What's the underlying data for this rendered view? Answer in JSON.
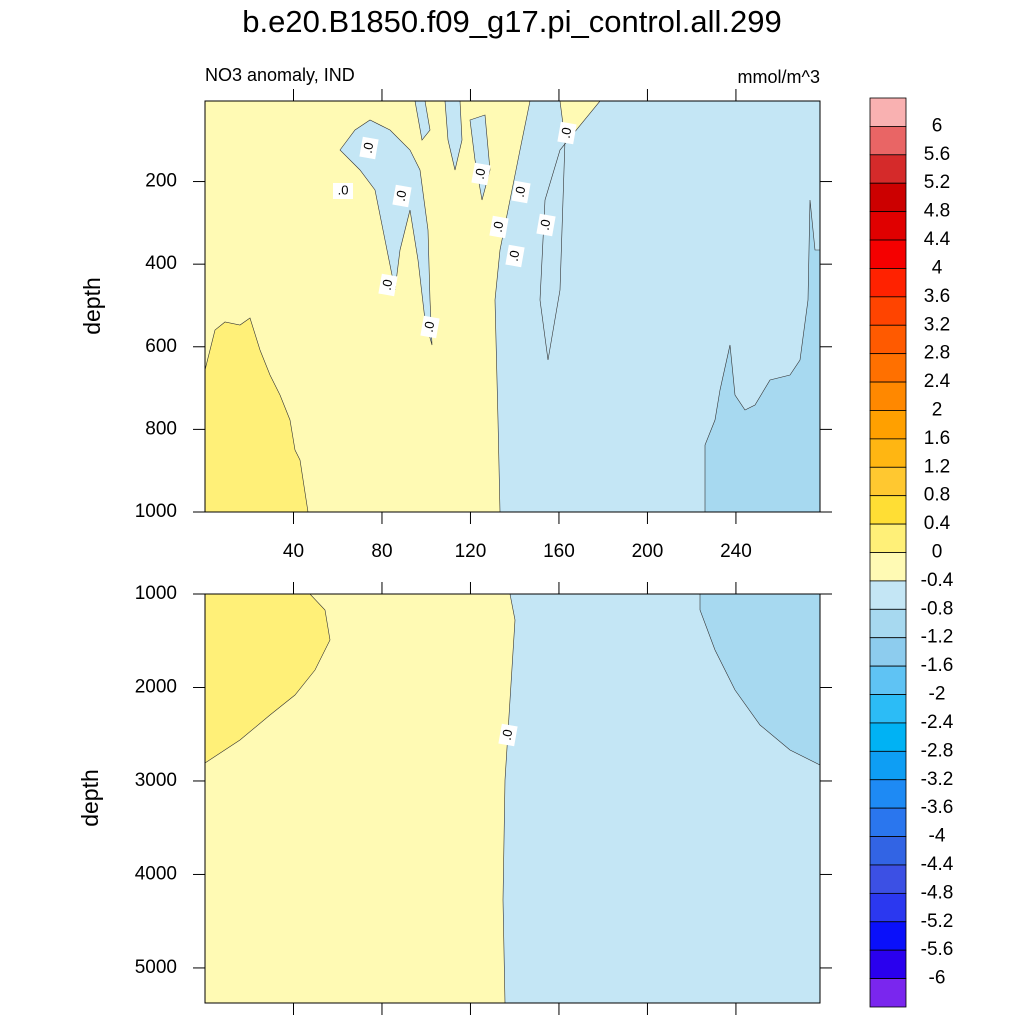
{
  "title": "b.e20.B1850.f09_g17.pi_control.all.299",
  "chart_data": [
    {
      "type": "contour",
      "subtitle_left": "NO3 anomaly, IND",
      "subtitle_right": "mmol/m^3",
      "ylabel": "depth",
      "xlim": [
        0,
        278
      ],
      "xticks": [
        40,
        80,
        120,
        160,
        200,
        240
      ],
      "ylim": [
        1000,
        5
      ],
      "yticks": [
        200,
        400,
        600,
        800,
        1000
      ],
      "contour_labels": [
        ".0",
        ".0",
        ".0",
        ".0",
        ".0",
        ".0",
        ".0",
        ".0",
        ".0",
        ".0",
        ".0"
      ]
    },
    {
      "type": "contour",
      "ylabel": "depth",
      "xlim": [
        0,
        278
      ],
      "ylim": [
        5375,
        1000
      ],
      "yticks": [
        1000,
        2000,
        3000,
        4000,
        5000
      ],
      "contour_labels": [
        ".0"
      ]
    }
  ],
  "colorbar": {
    "levels": [
      6,
      5.6,
      5.2,
      4.8,
      4.4,
      4,
      3.6,
      3.2,
      2.8,
      2.4,
      2,
      1.6,
      1.2,
      0.8,
      0.4,
      0,
      -0.4,
      -0.8,
      -1.2,
      -1.6,
      -2,
      -2.4,
      -2.8,
      -3.2,
      -3.6,
      -4,
      -4.4,
      -4.8,
      -5.2,
      -5.6,
      -6
    ],
    "colors": [
      "#f9b1b1",
      "#e96565",
      "#d52a2a",
      "#cc0000",
      "#e00000",
      "#f50000",
      "#ff2200",
      "#ff4400",
      "#ff5a00",
      "#ff7000",
      "#ff8800",
      "#ffa000",
      "#ffb612",
      "#ffc830",
      "#ffde34",
      "#fff078",
      "#fffab4",
      "#c4e6f5",
      "#a7d9f0",
      "#8dccee",
      "#5fc3f4",
      "#2cbcf6",
      "#00b2f4",
      "#0e9ef4",
      "#1e8af4",
      "#2a76ee",
      "#3264e4",
      "#3c50e4",
      "#2b38f0",
      "#0a10fa",
      "#2a00ee",
      "#7a26ee"
    ]
  }
}
